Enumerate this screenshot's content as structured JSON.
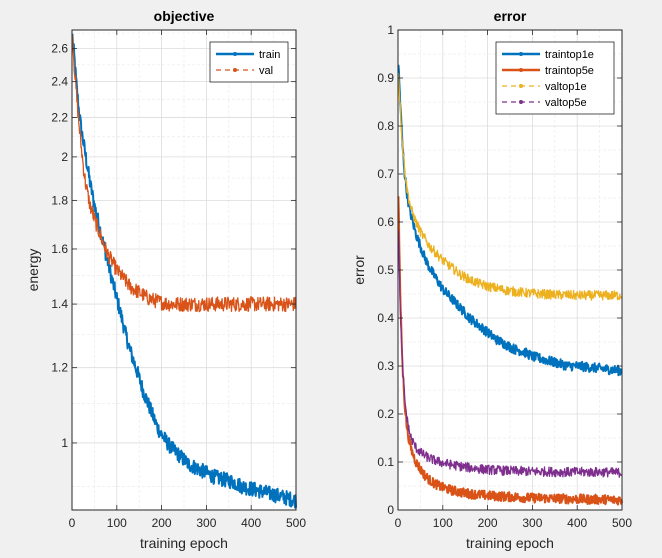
{
  "colors": {
    "figure_bg": "#f0f0f0",
    "axes_bg": "#ffffff",
    "blue": "#0072BD",
    "orange": "#D95319",
    "yellow": "#EDB120",
    "purple": "#7E2F8E"
  },
  "chart_data": [
    {
      "type": "line",
      "title": "objective",
      "xlabel": "training epoch",
      "ylabel": "energy",
      "yscale": "log",
      "xlim": [
        0,
        500
      ],
      "ylim": [
        0.85,
        2.72
      ],
      "xticks": [
        0,
        100,
        200,
        300,
        400,
        500
      ],
      "yticks": [
        1,
        1.2,
        1.4,
        1.6,
        1.8,
        2,
        2.2,
        2.4,
        2.6
      ],
      "ytick_labels": [
        "1",
        "1.2",
        "1.4",
        "1.6",
        "1.8",
        "2",
        "2.2",
        "2.4",
        "2.6"
      ],
      "grid": true,
      "legend_position": "top-right",
      "series": [
        {
          "name": "train",
          "color": "#0072BD",
          "style": "solid",
          "x": [
            1,
            5,
            10,
            15,
            20,
            25,
            30,
            40,
            50,
            60,
            70,
            80,
            90,
            100,
            110,
            120,
            130,
            140,
            150,
            160,
            170,
            180,
            190,
            200,
            220,
            240,
            260,
            280,
            300,
            320,
            340,
            360,
            380,
            400,
            420,
            440,
            460,
            480,
            500
          ],
          "y": [
            2.68,
            2.55,
            2.38,
            2.25,
            2.15,
            2.08,
            2.01,
            1.88,
            1.78,
            1.7,
            1.62,
            1.55,
            1.48,
            1.42,
            1.36,
            1.3,
            1.25,
            1.21,
            1.17,
            1.13,
            1.1,
            1.07,
            1.04,
            1.02,
            0.99,
            0.97,
            0.95,
            0.94,
            0.93,
            0.92,
            0.915,
            0.91,
            0.9,
            0.895,
            0.89,
            0.885,
            0.88,
            0.875,
            0.87
          ]
        },
        {
          "name": "val",
          "color": "#D95319",
          "style": "dashed",
          "x": [
            1,
            5,
            10,
            15,
            20,
            25,
            30,
            40,
            50,
            60,
            70,
            80,
            90,
            100,
            110,
            120,
            130,
            140,
            150,
            160,
            170,
            180,
            190,
            200,
            220,
            240,
            260,
            280,
            300,
            320,
            340,
            360,
            380,
            400,
            420,
            440,
            460,
            480,
            500
          ],
          "y": [
            2.68,
            2.5,
            2.32,
            2.18,
            2.06,
            1.96,
            1.88,
            1.78,
            1.72,
            1.67,
            1.62,
            1.58,
            1.55,
            1.52,
            1.5,
            1.48,
            1.46,
            1.45,
            1.44,
            1.43,
            1.42,
            1.415,
            1.41,
            1.405,
            1.4,
            1.4,
            1.4,
            1.4,
            1.4,
            1.4,
            1.4,
            1.4,
            1.4,
            1.4,
            1.4,
            1.4,
            1.4,
            1.4,
            1.4
          ]
        }
      ]
    },
    {
      "type": "line",
      "title": "error",
      "xlabel": "training epoch",
      "ylabel": "error",
      "xlim": [
        0,
        500
      ],
      "ylim": [
        0,
        1
      ],
      "xticks": [
        0,
        100,
        200,
        300,
        400,
        500
      ],
      "yticks": [
        0,
        0.1,
        0.2,
        0.3,
        0.4,
        0.5,
        0.6,
        0.7,
        0.8,
        0.9,
        1
      ],
      "ytick_labels": [
        "0",
        "0.1",
        "0.2",
        "0.3",
        "0.4",
        "0.5",
        "0.6",
        "0.7",
        "0.8",
        "0.9",
        "1"
      ],
      "grid": true,
      "legend_position": "top-right",
      "series": [
        {
          "name": "traintop1e",
          "color": "#0072BD",
          "style": "solid",
          "x": [
            1,
            5,
            10,
            15,
            20,
            25,
            30,
            40,
            50,
            60,
            70,
            80,
            90,
            100,
            120,
            140,
            160,
            180,
            200,
            220,
            240,
            260,
            280,
            300,
            320,
            340,
            360,
            380,
            400,
            420,
            440,
            460,
            480,
            500
          ],
          "y": [
            0.93,
            0.85,
            0.76,
            0.7,
            0.66,
            0.63,
            0.61,
            0.575,
            0.55,
            0.525,
            0.505,
            0.49,
            0.475,
            0.46,
            0.44,
            0.42,
            0.4,
            0.385,
            0.37,
            0.355,
            0.345,
            0.335,
            0.33,
            0.32,
            0.315,
            0.31,
            0.305,
            0.3,
            0.3,
            0.298,
            0.296,
            0.294,
            0.292,
            0.29
          ]
        },
        {
          "name": "traintop5e",
          "color": "#D95319",
          "style": "solid",
          "x": [
            1,
            5,
            10,
            15,
            20,
            25,
            30,
            40,
            50,
            60,
            70,
            80,
            90,
            100,
            120,
            140,
            160,
            180,
            200,
            220,
            240,
            260,
            280,
            300,
            320,
            340,
            360,
            380,
            400,
            420,
            440,
            460,
            480,
            500
          ],
          "y": [
            0.66,
            0.45,
            0.3,
            0.22,
            0.17,
            0.145,
            0.125,
            0.1,
            0.085,
            0.072,
            0.063,
            0.056,
            0.051,
            0.047,
            0.041,
            0.037,
            0.034,
            0.032,
            0.03,
            0.029,
            0.028,
            0.027,
            0.026,
            0.025,
            0.025,
            0.024,
            0.024,
            0.023,
            0.023,
            0.022,
            0.022,
            0.022,
            0.021,
            0.021
          ]
        },
        {
          "name": "valtop1e",
          "color": "#EDB120",
          "style": "dashed",
          "x": [
            1,
            5,
            10,
            15,
            20,
            25,
            30,
            40,
            50,
            60,
            70,
            80,
            90,
            100,
            120,
            140,
            160,
            180,
            200,
            220,
            240,
            260,
            280,
            300,
            320,
            340,
            360,
            380,
            400,
            420,
            440,
            460,
            480,
            500
          ],
          "y": [
            0.91,
            0.84,
            0.76,
            0.71,
            0.67,
            0.645,
            0.625,
            0.6,
            0.58,
            0.565,
            0.55,
            0.54,
            0.53,
            0.52,
            0.505,
            0.49,
            0.48,
            0.472,
            0.466,
            0.462,
            0.458,
            0.455,
            0.453,
            0.451,
            0.45,
            0.449,
            0.448,
            0.448,
            0.447,
            0.447,
            0.447,
            0.447,
            0.447,
            0.447
          ]
        },
        {
          "name": "valtop5e",
          "color": "#7E2F8E",
          "style": "dashed",
          "x": [
            1,
            5,
            10,
            15,
            20,
            25,
            30,
            40,
            50,
            60,
            70,
            80,
            90,
            100,
            120,
            140,
            160,
            180,
            200,
            220,
            240,
            260,
            280,
            300,
            320,
            340,
            360,
            380,
            400,
            420,
            440,
            460,
            480,
            500
          ],
          "y": [
            0.59,
            0.42,
            0.3,
            0.23,
            0.19,
            0.165,
            0.148,
            0.13,
            0.12,
            0.113,
            0.108,
            0.104,
            0.101,
            0.098,
            0.094,
            0.091,
            0.088,
            0.086,
            0.084,
            0.083,
            0.082,
            0.081,
            0.081,
            0.08,
            0.08,
            0.08,
            0.079,
            0.079,
            0.079,
            0.079,
            0.079,
            0.079,
            0.078,
            0.078
          ]
        }
      ]
    }
  ]
}
